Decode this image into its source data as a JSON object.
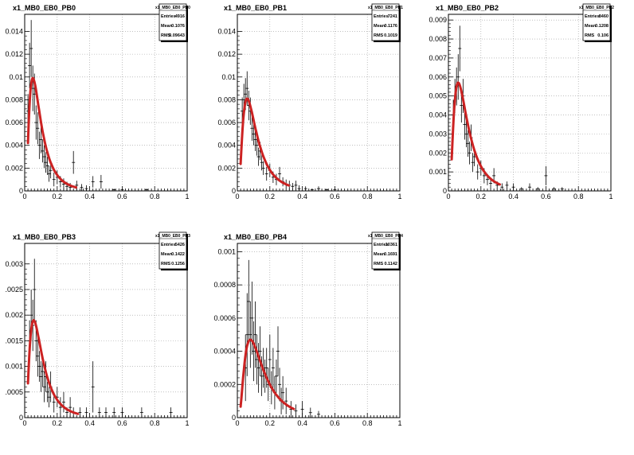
{
  "canvas_background": "#ffffff",
  "fit_color": "#cc2222",
  "data_color": "#000000",
  "chart_data": [
    {
      "type": "scatter",
      "title": "x1_MB0_EB0_PB0",
      "stats": {
        "name": "x1_MB0_EB0_PB0",
        "rows": [
          {
            "label": "Entries",
            "value": "4916"
          },
          {
            "label": "Mean",
            "value": "0.1076"
          },
          {
            "label": "RMS",
            "value": "0.09643"
          }
        ]
      },
      "xlim": [
        0,
        1
      ],
      "ylim": [
        0,
        0.0155
      ],
      "xticks": [
        0,
        0.2,
        0.4,
        0.6,
        0.8,
        1
      ],
      "xtick_labels": [
        "0",
        "0.2",
        "0.4",
        "0.6",
        "0.8",
        "1"
      ],
      "yticks": [
        0,
        0.002,
        0.004,
        0.006,
        0.008,
        0.01,
        0.012,
        0.014
      ],
      "ytick_labels": [
        "0",
        "0.002",
        "0.004",
        "0.006",
        "0.008",
        "0.01",
        "0.012",
        "0.014"
      ],
      "grid": true,
      "points": [
        [
          0.02,
          0.007,
          0.0015
        ],
        [
          0.03,
          0.011,
          0.002
        ],
        [
          0.04,
          0.0125,
          0.0025
        ],
        [
          0.05,
          0.009,
          0.002
        ],
        [
          0.06,
          0.0085,
          0.0018
        ],
        [
          0.07,
          0.006,
          0.0015
        ],
        [
          0.08,
          0.0055,
          0.0014
        ],
        [
          0.09,
          0.004,
          0.0012
        ],
        [
          0.1,
          0.0045,
          0.0012
        ],
        [
          0.11,
          0.0035,
          0.001
        ],
        [
          0.12,
          0.003,
          0.001
        ],
        [
          0.13,
          0.0025,
          0.0009
        ],
        [
          0.14,
          0.0022,
          0.0008
        ],
        [
          0.15,
          0.0015,
          0.0007
        ],
        [
          0.16,
          0.0018,
          0.0007
        ],
        [
          0.18,
          0.001,
          0.0006
        ],
        [
          0.2,
          0.0012,
          0.0006
        ],
        [
          0.22,
          0.0008,
          0.0005
        ],
        [
          0.24,
          0.0006,
          0.0005
        ],
        [
          0.26,
          0.0004,
          0.0004
        ],
        [
          0.28,
          0.0003,
          0.0004
        ],
        [
          0.3,
          0.0025,
          0.001
        ],
        [
          0.32,
          0.0005,
          0.0004
        ],
        [
          0.35,
          0.0003,
          0.0003
        ],
        [
          0.38,
          0.0002,
          0.0003
        ],
        [
          0.42,
          0.0008,
          0.0005
        ],
        [
          0.47,
          0.0008,
          0.0006
        ],
        [
          0.55,
          0.0001,
          0.0001
        ],
        [
          0.6,
          0.0001,
          0.0001
        ],
        [
          0.75,
          0.0001,
          0.0001
        ]
      ],
      "fit": {
        "amplitude": 0.0099,
        "peak": 0.05,
        "xmax": 0.32
      }
    },
    {
      "type": "scatter",
      "title": "x1_MB0_EB0_PB1",
      "stats": {
        "name": "x1_MB0_EB0_PB1",
        "rows": [
          {
            "label": "Entries",
            "value": "7241"
          },
          {
            "label": "Mean",
            "value": "0.1176"
          },
          {
            "label": "RMS",
            "value": "0.1019"
          }
        ]
      },
      "xlim": [
        0,
        1
      ],
      "ylim": [
        0,
        0.0155
      ],
      "xticks": [
        0,
        0.2,
        0.4,
        0.6,
        0.8,
        1
      ],
      "xtick_labels": [
        "0",
        "0.2",
        "0.4",
        "0.6",
        "0.8",
        "1"
      ],
      "yticks": [
        0,
        0.002,
        0.004,
        0.006,
        0.008,
        0.01,
        0.012,
        0.014
      ],
      "ytick_labels": [
        "0",
        "0.002",
        "0.004",
        "0.006",
        "0.008",
        "0.01",
        "0.012",
        "0.014"
      ],
      "grid": true,
      "points": [
        [
          0.03,
          0.007,
          0.0012
        ],
        [
          0.04,
          0.008,
          0.0014
        ],
        [
          0.05,
          0.0085,
          0.0014
        ],
        [
          0.06,
          0.009,
          0.0015
        ],
        [
          0.07,
          0.0075,
          0.0013
        ],
        [
          0.08,
          0.007,
          0.0012
        ],
        [
          0.09,
          0.0055,
          0.0011
        ],
        [
          0.1,
          0.005,
          0.001
        ],
        [
          0.11,
          0.0045,
          0.001
        ],
        [
          0.12,
          0.004,
          0.0009
        ],
        [
          0.13,
          0.003,
          0.0008
        ],
        [
          0.14,
          0.0035,
          0.0008
        ],
        [
          0.15,
          0.0025,
          0.0007
        ],
        [
          0.16,
          0.002,
          0.0006
        ],
        [
          0.18,
          0.0015,
          0.0006
        ],
        [
          0.2,
          0.0018,
          0.0006
        ],
        [
          0.22,
          0.0012,
          0.0005
        ],
        [
          0.24,
          0.001,
          0.0005
        ],
        [
          0.26,
          0.0015,
          0.0006
        ],
        [
          0.28,
          0.0008,
          0.0004
        ],
        [
          0.3,
          0.0006,
          0.0004
        ],
        [
          0.32,
          0.0005,
          0.0004
        ],
        [
          0.34,
          0.0004,
          0.0003
        ],
        [
          0.36,
          0.0005,
          0.0004
        ],
        [
          0.38,
          0.0002,
          0.0003
        ],
        [
          0.42,
          0.0002,
          0.0002
        ],
        [
          0.46,
          0.0001,
          0.0001
        ],
        [
          0.5,
          0.0002,
          0.0002
        ],
        [
          0.55,
          0.0001,
          0.0001
        ],
        [
          0.6,
          0.0001,
          0.0001
        ]
      ],
      "fit": {
        "amplitude": 0.0081,
        "peak": 0.06,
        "xmax": 0.32
      }
    },
    {
      "type": "scatter",
      "title": "x1_MB0_EB0_PB2",
      "stats": {
        "name": "x1_MB0_EB0_PB2",
        "rows": [
          {
            "label": "Entries",
            "value": "8460"
          },
          {
            "label": "Mean",
            "value": "0.1208"
          },
          {
            "label": "RMS",
            "value": "0.106"
          }
        ]
      },
      "xlim": [
        0,
        1
      ],
      "ylim": [
        0,
        0.0093
      ],
      "xticks": [
        0,
        0.2,
        0.4,
        0.6,
        0.8,
        1
      ],
      "xtick_labels": [
        "0",
        "0.2",
        "0.4",
        "0.6",
        "0.8",
        "1"
      ],
      "yticks": [
        0,
        0.001,
        0.002,
        0.003,
        0.004,
        0.005,
        0.006,
        0.007,
        0.008,
        0.009
      ],
      "ytick_labels": [
        "0",
        "0.001",
        "0.002",
        "0.003",
        "0.004",
        "0.005",
        "0.006",
        "0.007",
        "0.008",
        "0.009"
      ],
      "grid": true,
      "points": [
        [
          0.03,
          0.004,
          0.0008
        ],
        [
          0.04,
          0.005,
          0.0009
        ],
        [
          0.05,
          0.0055,
          0.001
        ],
        [
          0.06,
          0.006,
          0.0012
        ],
        [
          0.07,
          0.0075,
          0.0012
        ],
        [
          0.08,
          0.0045,
          0.0009
        ],
        [
          0.09,
          0.005,
          0.0009
        ],
        [
          0.1,
          0.0035,
          0.0008
        ],
        [
          0.11,
          0.003,
          0.0007
        ],
        [
          0.12,
          0.0025,
          0.0007
        ],
        [
          0.13,
          0.002,
          0.0006
        ],
        [
          0.14,
          0.0028,
          0.0007
        ],
        [
          0.15,
          0.0015,
          0.0005
        ],
        [
          0.16,
          0.0018,
          0.0005
        ],
        [
          0.18,
          0.001,
          0.0004
        ],
        [
          0.2,
          0.0012,
          0.0004
        ],
        [
          0.22,
          0.0008,
          0.0004
        ],
        [
          0.24,
          0.0006,
          0.0003
        ],
        [
          0.26,
          0.0004,
          0.0003
        ],
        [
          0.28,
          0.0008,
          0.0004
        ],
        [
          0.3,
          0.0003,
          0.0002
        ],
        [
          0.33,
          0.0002,
          0.0002
        ],
        [
          0.36,
          0.0003,
          0.0002
        ],
        [
          0.4,
          0.0002,
          0.0002
        ],
        [
          0.45,
          0.0001,
          0.0001
        ],
        [
          0.5,
          0.0002,
          0.0002
        ],
        [
          0.55,
          0.0001,
          0.0001
        ],
        [
          0.6,
          0.0008,
          0.0005
        ],
        [
          0.65,
          0.0001,
          0.0001
        ],
        [
          0.7,
          0.0001,
          0.0001
        ]
      ],
      "fit": {
        "amplitude": 0.0057,
        "peak": 0.06,
        "xmax": 0.32
      }
    },
    {
      "type": "scatter",
      "title": "x1_MB0_EB0_PB3",
      "stats": {
        "name": "x1_MB0_EB0_PB3",
        "rows": [
          {
            "label": "Entries",
            "value": "5426"
          },
          {
            "label": "Mean",
            "value": "0.1422"
          },
          {
            "label": "RMS",
            "value": "0.1256"
          }
        ]
      },
      "xlim": [
        0,
        1
      ],
      "ylim": [
        0,
        0.0034
      ],
      "xticks": [
        0,
        0.2,
        0.4,
        0.6,
        0.8,
        1
      ],
      "xtick_labels": [
        "0",
        "0.2",
        "0.4",
        "0.6",
        "0.8",
        "1"
      ],
      "yticks": [
        0,
        0.0005,
        0.001,
        0.0015,
        0.002,
        0.0025,
        0.003
      ],
      "ytick_labels": [
        "0",
        ".0005",
        "0.001",
        ".0015",
        "0.002",
        ".0025",
        "0.003"
      ],
      "grid": true,
      "points": [
        [
          0.03,
          0.0015,
          0.0004
        ],
        [
          0.04,
          0.002,
          0.0005
        ],
        [
          0.05,
          0.0018,
          0.0005
        ],
        [
          0.06,
          0.0025,
          0.0006
        ],
        [
          0.07,
          0.0015,
          0.0004
        ],
        [
          0.08,
          0.0012,
          0.0004
        ],
        [
          0.09,
          0.001,
          0.0003
        ],
        [
          0.1,
          0.0008,
          0.0003
        ],
        [
          0.11,
          0.0009,
          0.0003
        ],
        [
          0.12,
          0.0006,
          0.0003
        ],
        [
          0.13,
          0.0008,
          0.0003
        ],
        [
          0.14,
          0.0005,
          0.0002
        ],
        [
          0.15,
          0.0004,
          0.0002
        ],
        [
          0.16,
          0.0006,
          0.0003
        ],
        [
          0.18,
          0.0003,
          0.0002
        ],
        [
          0.2,
          0.0004,
          0.0002
        ],
        [
          0.22,
          0.0002,
          0.0002
        ],
        [
          0.24,
          0.0003,
          0.0002
        ],
        [
          0.26,
          0.0001,
          0.0001
        ],
        [
          0.28,
          0.0002,
          0.0002
        ],
        [
          0.3,
          0.0001,
          0.0001
        ],
        [
          0.34,
          0.0001,
          0.0001
        ],
        [
          0.38,
          0.0001,
          0.0001
        ],
        [
          0.42,
          0.0006,
          0.0005
        ],
        [
          0.46,
          0.0001,
          0.0001
        ],
        [
          0.5,
          0.0001,
          0.0001
        ],
        [
          0.55,
          0.0001,
          0.0001
        ],
        [
          0.6,
          0.0001,
          0.0001
        ],
        [
          0.72,
          0.0001,
          0.0001
        ],
        [
          0.9,
          0.0001,
          0.0001
        ]
      ],
      "fit": {
        "amplitude": 0.0019,
        "peak": 0.055,
        "xmax": 0.33
      }
    },
    {
      "type": "scatter",
      "title": "x1_MB0_EB0_PB4",
      "stats": {
        "name": "x1_MB0_EB0_PB4",
        "rows": [
          {
            "label": "Entries",
            "value": "10361"
          },
          {
            "label": "Mean",
            "value": "0.1691"
          },
          {
            "label": "RMS",
            "value": "0.1142"
          }
        ]
      },
      "xlim": [
        0,
        1
      ],
      "ylim": [
        0,
        0.00105
      ],
      "xticks": [
        0,
        0.2,
        0.4,
        0.6,
        0.8,
        1
      ],
      "xtick_labels": [
        "0",
        "0.2",
        "0.4",
        "0.6",
        "0.8",
        "1"
      ],
      "yticks": [
        0,
        0.0002,
        0.0004,
        0.0006,
        0.0008,
        0.001
      ],
      "ytick_labels": [
        "0",
        "0.0002",
        "0.0004",
        "0.0006",
        "0.0008",
        "0.001"
      ],
      "grid": true,
      "points": [
        [
          0.05,
          0.0003,
          0.0002
        ],
        [
          0.06,
          0.0005,
          0.00025
        ],
        [
          0.07,
          0.0007,
          0.00025
        ],
        [
          0.08,
          0.0005,
          0.0002
        ],
        [
          0.09,
          0.0006,
          0.00022
        ],
        [
          0.1,
          0.0004,
          0.00018
        ],
        [
          0.11,
          0.0005,
          0.0002
        ],
        [
          0.12,
          0.00035,
          0.00015
        ],
        [
          0.13,
          0.0003,
          0.00015
        ],
        [
          0.14,
          0.0004,
          0.00015
        ],
        [
          0.15,
          0.00025,
          0.00012
        ],
        [
          0.16,
          0.0003,
          0.00012
        ],
        [
          0.17,
          0.00025,
          0.0001
        ],
        [
          0.18,
          0.0003,
          0.00012
        ],
        [
          0.19,
          0.0002,
          0.0001
        ],
        [
          0.2,
          0.00035,
          0.00015
        ],
        [
          0.21,
          0.00018,
          0.0001
        ],
        [
          0.22,
          0.0003,
          0.00012
        ],
        [
          0.23,
          0.00015,
          0.0001
        ],
        [
          0.24,
          0.00025,
          0.0001
        ],
        [
          0.25,
          0.0004,
          0.00015
        ],
        [
          0.26,
          0.0002,
          0.0001
        ],
        [
          0.27,
          0.0001,
          8e-05
        ],
        [
          0.28,
          0.00015,
          0.0001
        ],
        [
          0.3,
          0.0001,
          8e-05
        ],
        [
          0.33,
          5e-05,
          5e-05
        ],
        [
          0.36,
          4e-05,
          4e-05
        ],
        [
          0.4,
          5e-05,
          5e-05
        ],
        [
          0.45,
          3e-05,
          3e-05
        ],
        [
          0.5,
          2e-05,
          2e-05
        ]
      ],
      "fit": {
        "amplitude": 0.00047,
        "peak": 0.08,
        "xmax": 0.35
      }
    }
  ]
}
